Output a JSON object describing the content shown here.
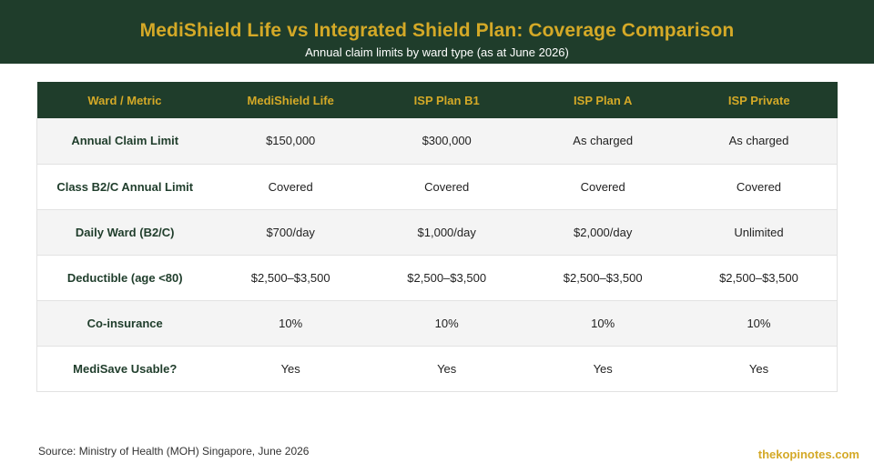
{
  "header": {
    "title": "MediShield Life vs Integrated Shield Plan: Coverage Comparison",
    "subtitle": "Annual claim limits by ward type (as at June 2026)"
  },
  "colors": {
    "header_bg": "#1f3d2b",
    "accent_gold": "#d4a927",
    "row_alt": "#f4f4f4"
  },
  "chart_data": {
    "type": "table",
    "title": "MediShield Life vs Integrated Shield Plan: Coverage Comparison",
    "subtitle": "Annual claim limits by ward type (as at June 2026)",
    "columns": [
      "Ward / Metric",
      "MediShield Life",
      "ISP Plan B1",
      "ISP Plan A",
      "ISP Private"
    ],
    "rows": [
      [
        "Annual Claim Limit",
        "$150,000",
        "$300,000",
        "As charged",
        "As charged"
      ],
      [
        "Class B2/C Annual Limit",
        "Covered",
        "Covered",
        "Covered",
        "Covered"
      ],
      [
        "Daily Ward (B2/C)",
        "$700/day",
        "$1,000/day",
        "$2,000/day",
        "Unlimited"
      ],
      [
        "Deductible (age <80)",
        "$2,500–$3,500",
        "$2,500–$3,500",
        "$2,500–$3,500",
        "$2,500–$3,500"
      ],
      [
        "Co-insurance",
        "10%",
        "10%",
        "10%",
        "10%"
      ],
      [
        "MediSave Usable?",
        "Yes",
        "Yes",
        "Yes",
        "Yes"
      ]
    ]
  },
  "footer": {
    "source": "Source: Ministry of Health (MOH) Singapore, June 2026",
    "brand": "thekopinotes.com"
  }
}
